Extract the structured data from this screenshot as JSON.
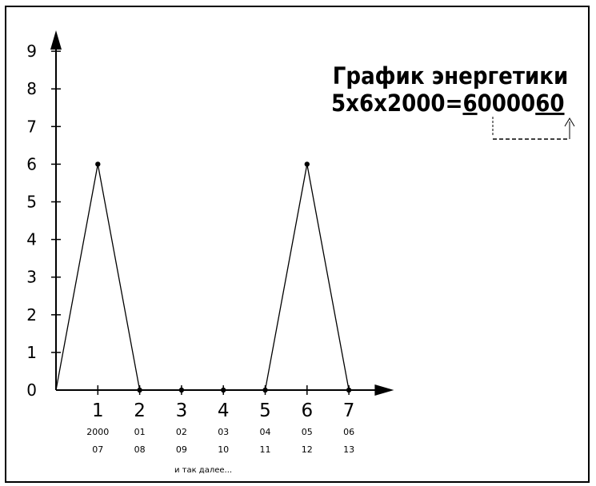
{
  "chart_data": {
    "type": "line",
    "title": "График энергетики",
    "subtitle": "5x6x2000=6000060",
    "subtitle_parts": [
      "5x6x2000=",
      "6",
      "0000",
      "60"
    ],
    "x": [
      0,
      1,
      2,
      3,
      4,
      5,
      6,
      7
    ],
    "values": [
      0,
      6,
      0,
      0,
      0,
      0,
      6,
      0
    ],
    "marked_points": [
      1,
      2,
      3,
      4,
      5,
      6,
      7
    ],
    "y_ticks": [
      "0",
      "1",
      "2",
      "3",
      "4",
      "5",
      "6",
      "7",
      "8",
      "9"
    ],
    "x_ticks": [
      "1",
      "2",
      "3",
      "4",
      "5",
      "6",
      "7"
    ],
    "x_sub_row1": [
      "2000",
      "01",
      "02",
      "03",
      "04",
      "05",
      "06"
    ],
    "x_sub_row2": [
      "07",
      "08",
      "09",
      "10",
      "11",
      "12",
      "13"
    ],
    "note": "и так далее...",
    "xlim": [
      0,
      8
    ],
    "ylim": [
      0,
      9
    ],
    "color": "#000000"
  }
}
